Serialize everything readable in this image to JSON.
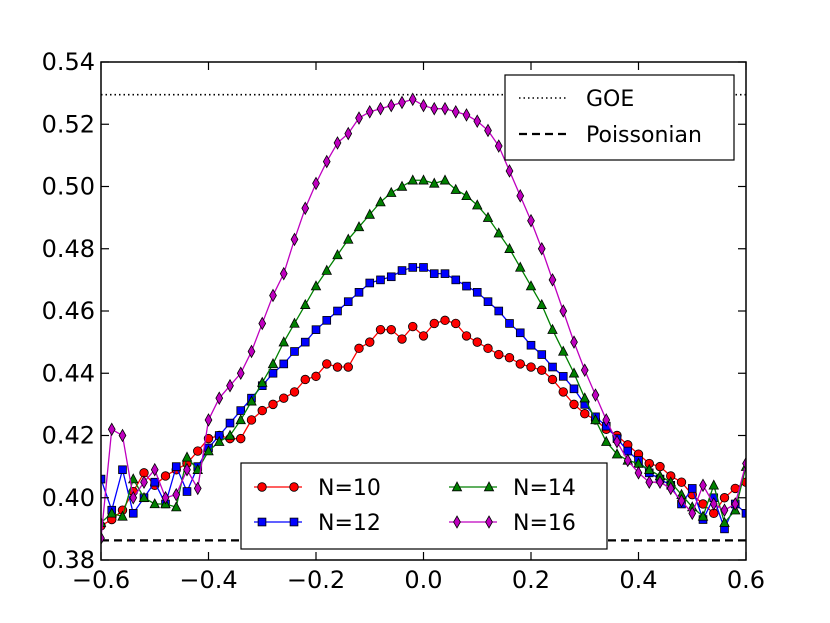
{
  "chart_data": {
    "type": "line",
    "title": "",
    "xlabel": "",
    "ylabel": "",
    "xlim": [
      -0.6,
      0.6
    ],
    "ylim": [
      0.38,
      0.54
    ],
    "xticks": [
      "−0.6",
      "−0.4",
      "−0.2",
      "0.0",
      "0.2",
      "0.4",
      "0.6"
    ],
    "xtick_values": [
      -0.6,
      -0.4,
      -0.2,
      0.0,
      0.2,
      0.4,
      0.6
    ],
    "yticks": [
      "0.38",
      "0.40",
      "0.42",
      "0.44",
      "0.46",
      "0.48",
      "0.50",
      "0.52",
      "0.54"
    ],
    "ytick_values": [
      0.38,
      0.4,
      0.42,
      0.44,
      0.46,
      0.48,
      0.5,
      0.52,
      0.54
    ],
    "grid": false,
    "reference_lines": [
      {
        "name": "GOE",
        "y": 0.5295,
        "style": "dotted",
        "color": "#000000"
      },
      {
        "name": "Poissonian",
        "y": 0.3863,
        "style": "dashed",
        "color": "#000000"
      }
    ],
    "reference_legend_position": "top-right",
    "series_legend_position": "lower-center",
    "series": [
      {
        "name": "N=10",
        "color": "#ff0000",
        "marker": "circle",
        "points": [
          [
            -0.6,
            0.391
          ],
          [
            -0.58,
            0.393
          ],
          [
            -0.56,
            0.396
          ],
          [
            -0.54,
            0.402
          ],
          [
            -0.52,
            0.408
          ],
          [
            -0.5,
            0.404
          ],
          [
            -0.48,
            0.407
          ],
          [
            -0.46,
            0.409
          ],
          [
            -0.44,
            0.411
          ],
          [
            -0.42,
            0.415
          ],
          [
            -0.4,
            0.419
          ],
          [
            -0.38,
            0.42
          ],
          [
            -0.36,
            0.419
          ],
          [
            -0.34,
            0.419
          ],
          [
            -0.32,
            0.425
          ],
          [
            -0.3,
            0.428
          ],
          [
            -0.28,
            0.43
          ],
          [
            -0.26,
            0.432
          ],
          [
            -0.24,
            0.434
          ],
          [
            -0.22,
            0.438
          ],
          [
            -0.2,
            0.439
          ],
          [
            -0.18,
            0.443
          ],
          [
            -0.16,
            0.442
          ],
          [
            -0.14,
            0.442
          ],
          [
            -0.12,
            0.448
          ],
          [
            -0.1,
            0.45
          ],
          [
            -0.08,
            0.454
          ],
          [
            -0.06,
            0.454
          ],
          [
            -0.04,
            0.451
          ],
          [
            -0.02,
            0.455
          ],
          [
            0.0,
            0.452
          ],
          [
            0.02,
            0.456
          ],
          [
            0.04,
            0.457
          ],
          [
            0.06,
            0.456
          ],
          [
            0.08,
            0.452
          ],
          [
            0.1,
            0.45
          ],
          [
            0.12,
            0.448
          ],
          [
            0.14,
            0.446
          ],
          [
            0.16,
            0.445
          ],
          [
            0.18,
            0.443
          ],
          [
            0.2,
            0.442
          ],
          [
            0.22,
            0.441
          ],
          [
            0.24,
            0.438
          ],
          [
            0.26,
            0.434
          ],
          [
            0.28,
            0.43
          ],
          [
            0.3,
            0.427
          ],
          [
            0.32,
            0.425
          ],
          [
            0.34,
            0.422
          ],
          [
            0.36,
            0.42
          ],
          [
            0.38,
            0.417
          ],
          [
            0.4,
            0.414
          ],
          [
            0.42,
            0.411
          ],
          [
            0.44,
            0.41
          ],
          [
            0.46,
            0.407
          ],
          [
            0.48,
            0.405
          ],
          [
            0.5,
            0.401
          ],
          [
            0.52,
            0.398
          ],
          [
            0.54,
            0.395
          ],
          [
            0.56,
            0.4
          ],
          [
            0.58,
            0.403
          ],
          [
            0.6,
            0.405
          ]
        ]
      },
      {
        "name": "N=12",
        "color": "#0000ff",
        "marker": "square",
        "points": [
          [
            -0.6,
            0.406
          ],
          [
            -0.58,
            0.396
          ],
          [
            -0.56,
            0.409
          ],
          [
            -0.54,
            0.395
          ],
          [
            -0.52,
            0.4
          ],
          [
            -0.5,
            0.405
          ],
          [
            -0.48,
            0.398
          ],
          [
            -0.46,
            0.41
          ],
          [
            -0.44,
            0.402
          ],
          [
            -0.42,
            0.41
          ],
          [
            -0.4,
            0.416
          ],
          [
            -0.38,
            0.42
          ],
          [
            -0.36,
            0.424
          ],
          [
            -0.34,
            0.428
          ],
          [
            -0.32,
            0.432
          ],
          [
            -0.3,
            0.436
          ],
          [
            -0.28,
            0.44
          ],
          [
            -0.26,
            0.443
          ],
          [
            -0.24,
            0.447
          ],
          [
            -0.22,
            0.45
          ],
          [
            -0.2,
            0.454
          ],
          [
            -0.18,
            0.457
          ],
          [
            -0.16,
            0.46
          ],
          [
            -0.14,
            0.463
          ],
          [
            -0.12,
            0.466
          ],
          [
            -0.1,
            0.469
          ],
          [
            -0.08,
            0.47
          ],
          [
            -0.06,
            0.471
          ],
          [
            -0.04,
            0.473
          ],
          [
            -0.02,
            0.474
          ],
          [
            0.0,
            0.474
          ],
          [
            0.02,
            0.472
          ],
          [
            0.04,
            0.472
          ],
          [
            0.06,
            0.47
          ],
          [
            0.08,
            0.468
          ],
          [
            0.1,
            0.466
          ],
          [
            0.12,
            0.463
          ],
          [
            0.14,
            0.46
          ],
          [
            0.16,
            0.456
          ],
          [
            0.18,
            0.453
          ],
          [
            0.2,
            0.449
          ],
          [
            0.22,
            0.446
          ],
          [
            0.24,
            0.442
          ],
          [
            0.26,
            0.439
          ],
          [
            0.28,
            0.435
          ],
          [
            0.3,
            0.43
          ],
          [
            0.32,
            0.426
          ],
          [
            0.34,
            0.423
          ],
          [
            0.36,
            0.419
          ],
          [
            0.38,
            0.415
          ],
          [
            0.4,
            0.412
          ],
          [
            0.42,
            0.408
          ],
          [
            0.44,
            0.406
          ],
          [
            0.46,
            0.404
          ],
          [
            0.48,
            0.398
          ],
          [
            0.5,
            0.403
          ],
          [
            0.52,
            0.393
          ],
          [
            0.54,
            0.4
          ],
          [
            0.56,
            0.39
          ],
          [
            0.58,
            0.398
          ],
          [
            0.6,
            0.395
          ]
        ]
      },
      {
        "name": "N=14",
        "color": "#008000",
        "marker": "triangle",
        "points": [
          [
            -0.6,
            0.392
          ],
          [
            -0.58,
            0.395
          ],
          [
            -0.56,
            0.394
          ],
          [
            -0.54,
            0.406
          ],
          [
            -0.52,
            0.4
          ],
          [
            -0.5,
            0.398
          ],
          [
            -0.48,
            0.398
          ],
          [
            -0.46,
            0.397
          ],
          [
            -0.44,
            0.413
          ],
          [
            -0.42,
            0.409
          ],
          [
            -0.4,
            0.415
          ],
          [
            -0.38,
            0.418
          ],
          [
            -0.36,
            0.42
          ],
          [
            -0.34,
            0.425
          ],
          [
            -0.32,
            0.431
          ],
          [
            -0.3,
            0.437
          ],
          [
            -0.28,
            0.443
          ],
          [
            -0.26,
            0.45
          ],
          [
            -0.24,
            0.456
          ],
          [
            -0.22,
            0.462
          ],
          [
            -0.2,
            0.468
          ],
          [
            -0.18,
            0.473
          ],
          [
            -0.16,
            0.478
          ],
          [
            -0.14,
            0.483
          ],
          [
            -0.12,
            0.487
          ],
          [
            -0.1,
            0.491
          ],
          [
            -0.08,
            0.495
          ],
          [
            -0.06,
            0.498
          ],
          [
            -0.04,
            0.5
          ],
          [
            -0.02,
            0.502
          ],
          [
            0.0,
            0.502
          ],
          [
            0.02,
            0.501
          ],
          [
            0.04,
            0.502
          ],
          [
            0.06,
            0.499
          ],
          [
            0.08,
            0.497
          ],
          [
            0.1,
            0.494
          ],
          [
            0.12,
            0.49
          ],
          [
            0.14,
            0.485
          ],
          [
            0.16,
            0.48
          ],
          [
            0.18,
            0.474
          ],
          [
            0.2,
            0.468
          ],
          [
            0.22,
            0.462
          ],
          [
            0.24,
            0.454
          ],
          [
            0.26,
            0.447
          ],
          [
            0.28,
            0.44
          ],
          [
            0.3,
            0.432
          ],
          [
            0.32,
            0.425
          ],
          [
            0.34,
            0.418
          ],
          [
            0.36,
            0.414
          ],
          [
            0.38,
            0.412
          ],
          [
            0.4,
            0.411
          ],
          [
            0.42,
            0.409
          ],
          [
            0.44,
            0.407
          ],
          [
            0.46,
            0.405
          ],
          [
            0.48,
            0.401
          ],
          [
            0.5,
            0.397
          ],
          [
            0.52,
            0.394
          ],
          [
            0.54,
            0.404
          ],
          [
            0.56,
            0.392
          ],
          [
            0.58,
            0.396
          ],
          [
            0.6,
            0.41
          ]
        ]
      },
      {
        "name": "N=16",
        "color": "#bf00bf",
        "marker": "diamond",
        "points": [
          [
            -0.6,
            0.387
          ],
          [
            -0.58,
            0.422
          ],
          [
            -0.56,
            0.42
          ],
          [
            -0.54,
            0.4
          ],
          [
            -0.52,
            0.405
          ],
          [
            -0.5,
            0.409
          ],
          [
            -0.48,
            0.4
          ],
          [
            -0.46,
            0.401
          ],
          [
            -0.44,
            0.409
          ],
          [
            -0.42,
            0.403
          ],
          [
            -0.4,
            0.425
          ],
          [
            -0.38,
            0.432
          ],
          [
            -0.36,
            0.436
          ],
          [
            -0.34,
            0.44
          ],
          [
            -0.32,
            0.447
          ],
          [
            -0.3,
            0.456
          ],
          [
            -0.28,
            0.465
          ],
          [
            -0.26,
            0.472
          ],
          [
            -0.24,
            0.483
          ],
          [
            -0.22,
            0.493
          ],
          [
            -0.2,
            0.501
          ],
          [
            -0.18,
            0.508
          ],
          [
            -0.16,
            0.514
          ],
          [
            -0.14,
            0.517
          ],
          [
            -0.12,
            0.522
          ],
          [
            -0.1,
            0.524
          ],
          [
            -0.08,
            0.525
          ],
          [
            -0.06,
            0.526
          ],
          [
            -0.04,
            0.527
          ],
          [
            -0.02,
            0.528
          ],
          [
            0.0,
            0.526
          ],
          [
            0.02,
            0.525
          ],
          [
            0.04,
            0.525
          ],
          [
            0.06,
            0.524
          ],
          [
            0.08,
            0.523
          ],
          [
            0.1,
            0.521
          ],
          [
            0.12,
            0.518
          ],
          [
            0.14,
            0.513
          ],
          [
            0.16,
            0.505
          ],
          [
            0.18,
            0.497
          ],
          [
            0.2,
            0.489
          ],
          [
            0.22,
            0.48
          ],
          [
            0.24,
            0.47
          ],
          [
            0.26,
            0.46
          ],
          [
            0.28,
            0.45
          ],
          [
            0.3,
            0.441
          ],
          [
            0.32,
            0.433
          ],
          [
            0.34,
            0.425
          ],
          [
            0.36,
            0.418
          ],
          [
            0.38,
            0.412
          ],
          [
            0.4,
            0.408
          ],
          [
            0.42,
            0.405
          ],
          [
            0.44,
            0.405
          ],
          [
            0.46,
            0.403
          ],
          [
            0.48,
            0.399
          ],
          [
            0.5,
            0.395
          ],
          [
            0.52,
            0.404
          ],
          [
            0.54,
            0.398
          ],
          [
            0.56,
            0.396
          ],
          [
            0.58,
            0.398
          ],
          [
            0.6,
            0.411
          ]
        ]
      }
    ]
  }
}
